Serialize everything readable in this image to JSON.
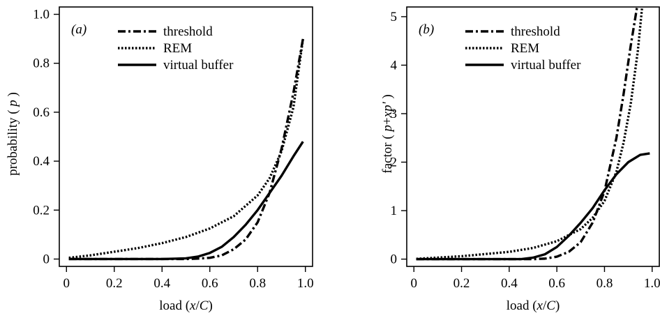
{
  "chart_data": [
    {
      "type": "line",
      "panel_label": "(a)",
      "ylabel": "probability ( p )",
      "ylabel_parts": [
        "probability ( ",
        "p",
        " )"
      ],
      "xlabel": "load (x/C)",
      "xlabel_parts": [
        "load (",
        "x",
        "/",
        "C",
        ")"
      ],
      "xlim": [
        -0.03,
        1.03
      ],
      "ylim": [
        -0.03,
        1.03
      ],
      "x_ticks": [
        0,
        0.2,
        0.4,
        0.6,
        0.8,
        1.0
      ],
      "x_tick_labels": [
        "0",
        "0.2",
        "0.4",
        "0.6",
        "0.8",
        "1.0"
      ],
      "y_ticks": [
        0,
        0.2,
        0.4,
        0.6,
        0.8,
        1.0
      ],
      "y_tick_labels": [
        "0",
        "0.2",
        "0.4",
        "0.6",
        "0.8",
        "1.0"
      ],
      "grid": false,
      "legend_position": "top-center",
      "series": [
        {
          "name": "threshold",
          "style": "dashdot",
          "x": [
            0.01,
            0.5,
            0.55,
            0.6,
            0.65,
            0.7,
            0.75,
            0.8,
            0.85,
            0.9,
            0.95,
            0.99
          ],
          "y": [
            0,
            0,
            0.002,
            0.005,
            0.015,
            0.04,
            0.08,
            0.15,
            0.27,
            0.45,
            0.68,
            0.9
          ]
        },
        {
          "name": "REM",
          "style": "dotted",
          "x": [
            0.01,
            0.1,
            0.2,
            0.3,
            0.4,
            0.5,
            0.6,
            0.7,
            0.8,
            0.85,
            0.9,
            0.95,
            0.99
          ],
          "y": [
            0.005,
            0.015,
            0.03,
            0.045,
            0.065,
            0.09,
            0.125,
            0.175,
            0.26,
            0.33,
            0.44,
            0.62,
            0.9
          ]
        },
        {
          "name": "virtual buffer",
          "style": "solid",
          "x": [
            0.01,
            0.4,
            0.5,
            0.55,
            0.6,
            0.65,
            0.7,
            0.75,
            0.8,
            0.85,
            0.9,
            0.95,
            0.99
          ],
          "y": [
            0,
            0,
            0.003,
            0.01,
            0.025,
            0.05,
            0.09,
            0.14,
            0.2,
            0.27,
            0.34,
            0.42,
            0.48
          ]
        }
      ]
    },
    {
      "type": "line",
      "panel_label": "(b)",
      "ylabel": "factor ( p+xp' )",
      "ylabel_parts": [
        "factor ( ",
        "p",
        "+",
        "xp'",
        " )"
      ],
      "xlabel": "load (x/C)",
      "xlabel_parts": [
        "load (",
        "x",
        "/",
        "C",
        ")"
      ],
      "xlim": [
        -0.03,
        1.03
      ],
      "ylim": [
        -0.15,
        5.2
      ],
      "x_ticks": [
        0,
        0.2,
        0.4,
        0.6,
        0.8,
        1.0
      ],
      "x_tick_labels": [
        "0",
        "0.2",
        "0.4",
        "0.6",
        "0.8",
        "1.0"
      ],
      "y_ticks": [
        0,
        1,
        2,
        3,
        4,
        5
      ],
      "y_tick_labels": [
        "0",
        "1",
        "2",
        "3",
        "4",
        "5"
      ],
      "grid": false,
      "legend_position": "top-center",
      "series": [
        {
          "name": "threshold",
          "style": "dashdot",
          "x": [
            0.01,
            0.5,
            0.55,
            0.6,
            0.65,
            0.7,
            0.75,
            0.8,
            0.85,
            0.88,
            0.91,
            0.94
          ],
          "y": [
            0,
            0,
            0.01,
            0.05,
            0.15,
            0.35,
            0.75,
            1.4,
            2.5,
            3.4,
            4.4,
            5.3
          ]
        },
        {
          "name": "REM",
          "style": "dotted",
          "x": [
            0.01,
            0.2,
            0.4,
            0.5,
            0.6,
            0.7,
            0.75,
            0.8,
            0.85,
            0.88,
            0.91,
            0.94,
            0.96
          ],
          "y": [
            0.005,
            0.06,
            0.15,
            0.23,
            0.37,
            0.62,
            0.85,
            1.2,
            1.8,
            2.4,
            3.2,
            4.3,
            5.3
          ]
        },
        {
          "name": "virtual buffer",
          "style": "solid",
          "x": [
            0.01,
            0.45,
            0.5,
            0.55,
            0.6,
            0.65,
            0.7,
            0.75,
            0.8,
            0.85,
            0.9,
            0.95,
            0.99
          ],
          "y": [
            0,
            0,
            0.03,
            0.1,
            0.25,
            0.48,
            0.75,
            1.05,
            1.42,
            1.75,
            2.0,
            2.15,
            2.18
          ]
        }
      ]
    }
  ]
}
